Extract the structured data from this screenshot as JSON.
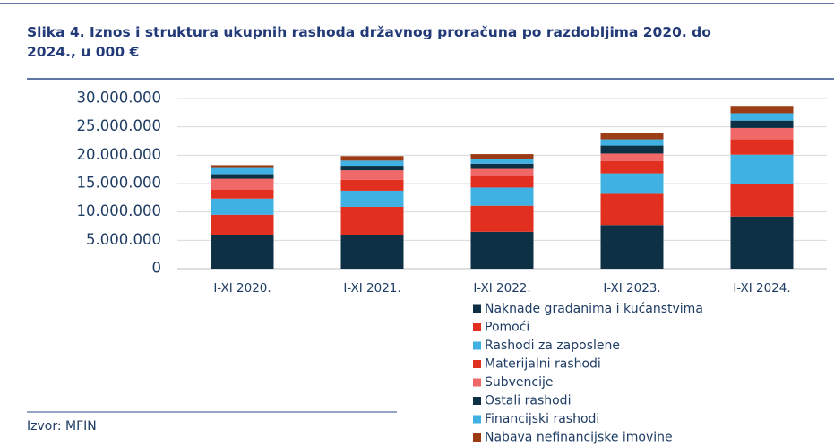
{
  "chart_data": {
    "type": "stacked_bar",
    "title": "Slika 4. Iznos i struktura ukupnih rashoda državnog proračuna po razdobljima 2020. do 2024., u 000 €",
    "source": "Izvor: MFIN",
    "categories": [
      "I-XI 2020.",
      "I-XI 2021.",
      "I-XI 2022.",
      "I-XI 2023.",
      "I-XI 2024."
    ],
    "series": [
      {
        "name": "Naknade građanima i kućanstvima",
        "color": "#0e3044",
        "values": [
          6000000,
          6000000,
          6500000,
          7700000,
          9200000
        ]
      },
      {
        "name": "Pomoći",
        "color": "#e1301f",
        "values": [
          3500000,
          4900000,
          4600000,
          5500000,
          5800000
        ]
      },
      {
        "name": "Rashodi za zaposlene",
        "color": "#3fb1e3",
        "values": [
          2850000,
          2850000,
          3200000,
          3600000,
          5100000
        ]
      },
      {
        "name": "Materijalni rashodi",
        "color": "#e1301f",
        "values": [
          1600000,
          1900000,
          2000000,
          2200000,
          2700000
        ]
      },
      {
        "name": "Subvencije",
        "color": "#f06868",
        "values": [
          1900000,
          1700000,
          1300000,
          1300000,
          2000000
        ]
      },
      {
        "name": "Ostali rashodi",
        "color": "#0e3044",
        "values": [
          800000,
          800000,
          900000,
          1400000,
          1300000
        ]
      },
      {
        "name": "Financijski rashodi",
        "color": "#3fb1e3",
        "values": [
          1100000,
          900000,
          900000,
          1100000,
          1300000
        ]
      },
      {
        "name": "Nabava nefinancijske imovine",
        "color": "#9c3c16",
        "values": [
          500000,
          800000,
          800000,
          1100000,
          1300000
        ]
      }
    ],
    "ylim": [
      0,
      30000000
    ],
    "yticks": [
      0,
      {
        "value": 5000000,
        "label": "5.000.000"
      },
      {
        "value": 10000000,
        "label": "10.000.000"
      },
      {
        "value": 15000000,
        "label": "15.000.000"
      },
      {
        "value": 20000000,
        "label": "20.000.000"
      },
      {
        "value": 25000000,
        "label": "25.000.000"
      },
      {
        "value": 30000000,
        "label": "30.000.000"
      }
    ],
    "grid": true
  }
}
